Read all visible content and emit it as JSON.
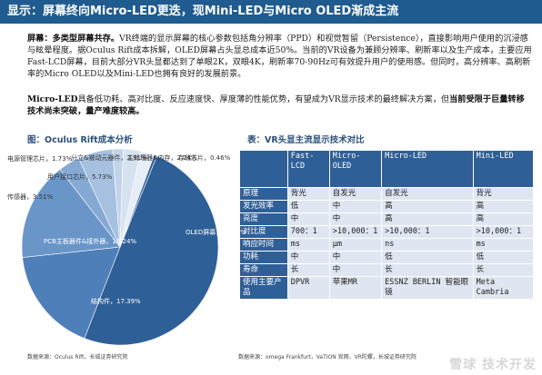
{
  "title": "显示：屏幕终向Micro-LED更迭，现Mini-LED与Micro OLED渐成主流",
  "paragraphs": [
    {
      "lead": "屏幕：多类型屏幕共存。",
      "text": "VR终端的显示屏幕的核心参数包括角分辨率（PPD）和视觉暂留（Persistence），直接影响用户使用的沉浸感与眩晕程度。据Oculus Rift成本拆解，OLED屏幕占头显总成本近50%。当前的VR设备为兼顾分辨率、刷新率以及生产成本，主要应用Fast-LCD屏幕，目前大部分VR头显都达到了单眼2K，双眼4K，刷新率70-90Hz可有效提升用户的使用感。但同时，高分辨率、高刷新率的Micro OLED以及Mini-LED也拥有良好的发展前景。"
    },
    {
      "lead": "Micro-LED",
      "text": "具备低功耗、高对比度、反应速度快、厚度薄的性能优势，有望成为VR显示技术的最终解决方案，但",
      "tail": "当前受限于巨量转移技术尚未突破，量产难度较高。"
    }
  ],
  "pie": {
    "title": "图：Oculus Rift成本分析",
    "source": "数据来源：Oculus Rift，长城证券研究院",
    "colors": [
      "#2f5f97",
      "#4f7fb9",
      "#6a95c8",
      "#86a9d3",
      "#a6c0e0",
      "#c3d4ea",
      "#d7e2f1",
      "#e6edf7"
    ],
    "slices": [
      {
        "name": "OLED屏幕",
        "value": 49.79,
        "label": "OLED屏幕，49.79%"
      },
      {
        "name": "结构件",
        "value": 17.39,
        "label": "结构件，17.39%"
      },
      {
        "name": "PCB主板器件&接外器",
        "value": 16.24,
        "label": "PCB主板器件&接外器，16.24%"
      },
      {
        "name": "传感器",
        "value": 3.51,
        "label": "传感器，3.51%"
      },
      {
        "name": "用户接口芯片",
        "value": 5.73,
        "label": "用户接口芯片，5.73%"
      },
      {
        "name": "电源管理芯片",
        "value": 1.73,
        "label": "电源管理芯片，1.73%"
      },
      {
        "name": "分立&被动元器件",
        "value": 2.91,
        "label": "分立&被动元器件，2.91%"
      },
      {
        "name": "主处理器&内存",
        "value": 2.24,
        "label": "主处理器&内存，2.24%"
      },
      {
        "name": "存储芯片",
        "value": 0.46,
        "label": "存储芯片，0.46%"
      }
    ]
  },
  "table": {
    "title": "表：VR头显主流显示技术对比",
    "source": "数据来源：omega Frankfurt，VaTION 官网，VR陀螺，长城证券研究院",
    "headers": [
      "",
      "Fast-LCD",
      "Micro-OLED",
      "Micro-LED",
      "Mini-LED"
    ],
    "rows": [
      [
        "原理",
        "背光",
        "自发光",
        "自发光",
        "背光"
      ],
      [
        "发光效率",
        "低",
        "中",
        "高",
        "高"
      ],
      [
        "亮度",
        "中",
        "中",
        "高",
        "高"
      ],
      [
        "对比度",
        "700：1",
        ">10,000：1",
        ">10,000：1",
        ">10,000：1"
      ],
      [
        "响应时间",
        "ms",
        "μm",
        "ns",
        "ms"
      ],
      [
        "功耗",
        "中",
        "中",
        "低",
        "低"
      ],
      [
        "寿命",
        "长",
        "中",
        "长",
        "长"
      ],
      [
        "使用主要产品",
        "DPVR",
        "苹果MR",
        "ESSNZ BERLIN 智能眼镜",
        "Meta Cambria"
      ]
    ]
  },
  "watermark": "雪球 技术开发"
}
